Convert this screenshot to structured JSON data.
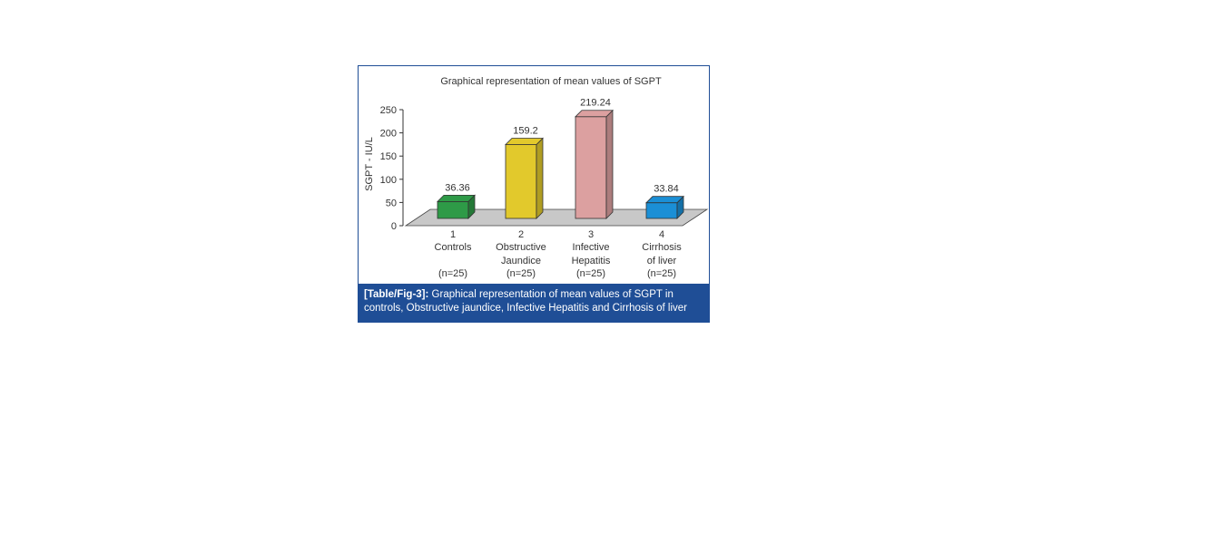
{
  "chart_data": {
    "type": "bar",
    "title": "Graphical representation of mean values of SGPT",
    "ylabel": "SGPT - IU/L",
    "ylim": [
      0,
      250
    ],
    "yticks": [
      0,
      50,
      100,
      150,
      200,
      250
    ],
    "categories": [
      {
        "number": "1",
        "name_lines": [
          "Controls",
          ""
        ],
        "n": "(n=25)",
        "value": 36.36,
        "value_label": "36.36",
        "color": "#2e9a47"
      },
      {
        "number": "2",
        "name_lines": [
          "Obstructive",
          "Jaundice"
        ],
        "n": "(n=25)",
        "value": 159.2,
        "value_label": "159.2",
        "color": "#e2c92c"
      },
      {
        "number": "3",
        "name_lines": [
          "Infective",
          "Hepatitis"
        ],
        "n": "(n=25)",
        "value": 219.24,
        "value_label": "219.24",
        "color": "#dca0a0"
      },
      {
        "number": "4",
        "name_lines": [
          "Cirrhosis",
          "of liver"
        ],
        "n": "(n=25)",
        "value": 33.84,
        "value_label": "33.84",
        "color": "#1b8fd6"
      }
    ],
    "floor_color": "#c8c8c8",
    "grid": false
  },
  "caption": {
    "lead": "[Table/Fig-3]:",
    "text": " Graphical representation of mean values of SGPT in controls, Obstructive jaundice, Infective Hepatitis and Cirrhosis of liver"
  }
}
